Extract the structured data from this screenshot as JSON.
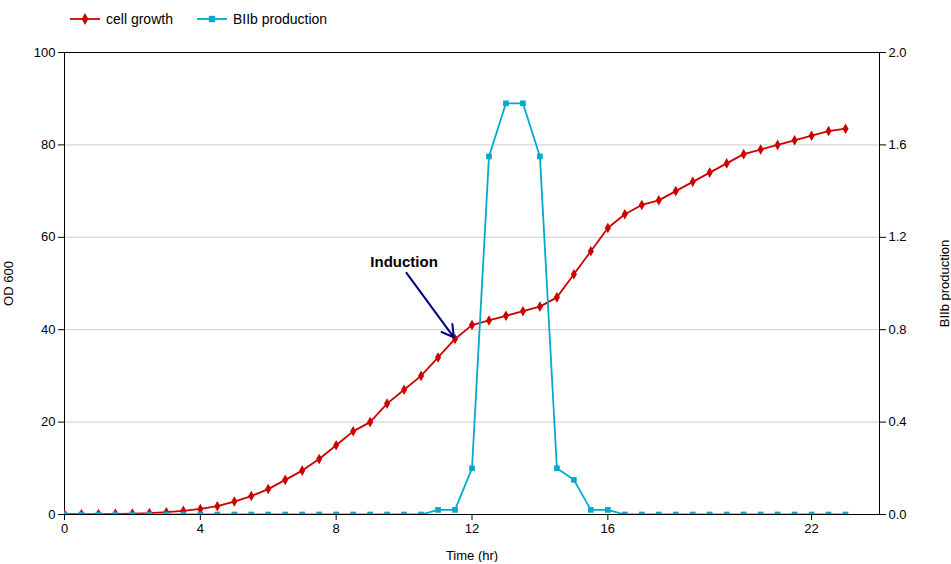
{
  "chart_data": {
    "type": "line",
    "xlabel": "Time (hr)",
    "ylabel": "OD 600",
    "y2label": "BIIb production",
    "x": [
      0,
      0.5,
      1,
      1.5,
      2,
      2.5,
      3,
      3.5,
      4,
      4.5,
      5,
      5.5,
      6,
      6.5,
      7,
      7.5,
      8,
      8.5,
      9,
      9.5,
      10,
      10.5,
      11,
      11.5,
      12,
      12.5,
      13,
      13.5,
      14,
      14.5,
      15,
      15.5,
      16,
      16.5,
      17,
      17.5,
      18,
      18.5,
      19,
      19.5,
      20,
      20.5,
      21,
      21.5,
      22,
      22.5,
      23
    ],
    "series": [
      {
        "name": "cell growth",
        "color": "#cc0000",
        "marker": "diamond",
        "axis": "y",
        "values": [
          0.05,
          0.07,
          0.1,
          0.15,
          0.2,
          0.3,
          0.5,
          0.8,
          1.2,
          1.8,
          2.8,
          4.0,
          5.5,
          7.5,
          9.5,
          12,
          15,
          18,
          20,
          24,
          27,
          30,
          34,
          38,
          41,
          42,
          43,
          44,
          45,
          47,
          52,
          57,
          62,
          65,
          67,
          68,
          70,
          72,
          74,
          76,
          78,
          79,
          80,
          81,
          82,
          83,
          83.5
        ]
      },
      {
        "name": "BIIb production",
        "color": "#00aacc",
        "marker": "square",
        "axis": "y2",
        "values": [
          0,
          0,
          0,
          0,
          0,
          0,
          0,
          0,
          0,
          0,
          0,
          0,
          0,
          0,
          0,
          0,
          0,
          0,
          0,
          0,
          0,
          0,
          0.02,
          0.02,
          0.2,
          1.55,
          1.78,
          1.78,
          1.55,
          0.2,
          0.15,
          0.02,
          0.02,
          0,
          0,
          0,
          0,
          0,
          0,
          0,
          0,
          0,
          0,
          0,
          0,
          0,
          0
        ]
      }
    ],
    "xlim": [
      0,
      24
    ],
    "xticks": [
      0,
      4,
      8,
      12,
      16,
      22
    ],
    "ylim": [
      0,
      100
    ],
    "yticks": [
      0,
      20,
      40,
      60,
      80,
      100
    ],
    "y2lim": [
      0,
      2
    ],
    "y2ticks": [
      {
        "value": 0,
        "label": "0.0"
      },
      0.4,
      0.8,
      1.2,
      1.6,
      {
        "value": 2,
        "label": "2.0"
      }
    ],
    "annotations": [
      {
        "text": "Induction",
        "x": 11.5,
        "y": 38,
        "text_x": 10,
        "text_y": 53,
        "color": "#000080"
      }
    ],
    "legend": "upper left",
    "grid": true
  }
}
